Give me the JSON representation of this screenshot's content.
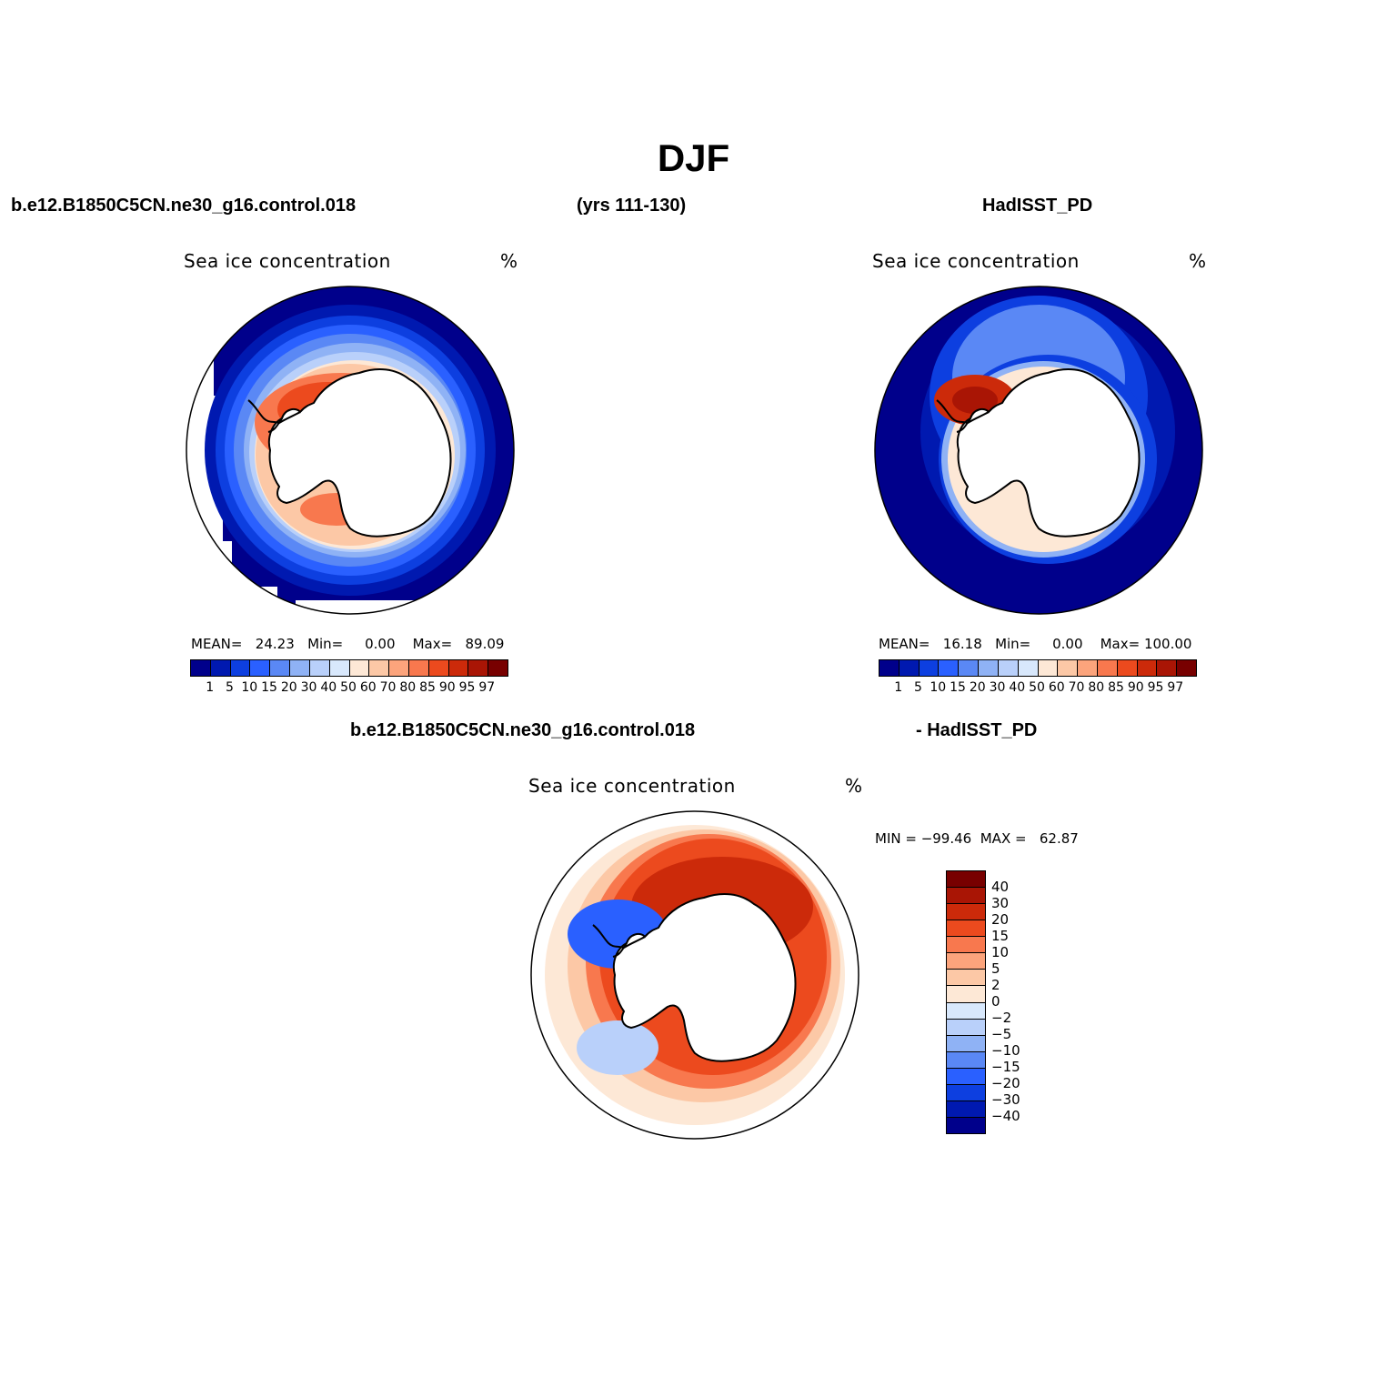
{
  "title": "DJF",
  "headers": {
    "case_name": "b.e12.B1850C5CN.ne30_g16.control.018",
    "years": "(yrs 111-130)",
    "obs_name": "HadISST_PD",
    "diff_case": "b.e12.B1850C5CN.ne30_g16.control.018",
    "diff_obs": "- HadISST_PD"
  },
  "panels": [
    {
      "title": "Sea ice concentration",
      "units": "%",
      "stats": {
        "mean_label": "MEAN=",
        "mean": "24.23",
        "min_label": "Min=",
        "min": "0.00",
        "max_label": "Max=",
        "max": "89.09"
      }
    },
    {
      "title": "Sea ice concentration",
      "units": "%",
      "stats": {
        "mean_label": "MEAN=",
        "mean": "16.18",
        "min_label": "Min=",
        "min": "0.00",
        "max_label": "Max=",
        "max": "100.00"
      }
    },
    {
      "title": "Sea ice concentration",
      "units": "%",
      "stats": {
        "minmax": "MIN = −99.46  MAX =   62.87"
      }
    }
  ],
  "colorbar_main": {
    "ticks": [
      "1",
      "5",
      "10",
      "15",
      "20",
      "30",
      "40",
      "50",
      "60",
      "70",
      "80",
      "85",
      "90",
      "95",
      "97"
    ],
    "colors": [
      "#00008b",
      "#0019b0",
      "#0d3fe0",
      "#2a60ff",
      "#5a88f5",
      "#8fb2f5",
      "#b9d0fa",
      "#d8e8fc",
      "#fde8d6",
      "#fcc8a6",
      "#fca47c",
      "#f8784e",
      "#ec4a1e",
      "#cc2a0a",
      "#a91505",
      "#780000"
    ]
  },
  "colorbar_diff": {
    "ticks": [
      "40",
      "30",
      "20",
      "15",
      "10",
      "5",
      "2",
      "0",
      "−2",
      "−5",
      "−10",
      "−15",
      "−20",
      "−30",
      "−40"
    ],
    "colors": [
      "#780000",
      "#a91505",
      "#cc2a0a",
      "#ec4a1e",
      "#f8784e",
      "#fca47c",
      "#fcc8a6",
      "#fde8d6",
      "#d8e8fc",
      "#b9d0fa",
      "#8fb2f5",
      "#5a88f5",
      "#2a60ff",
      "#0d3fe0",
      "#0019b0",
      "#00008b"
    ]
  }
}
